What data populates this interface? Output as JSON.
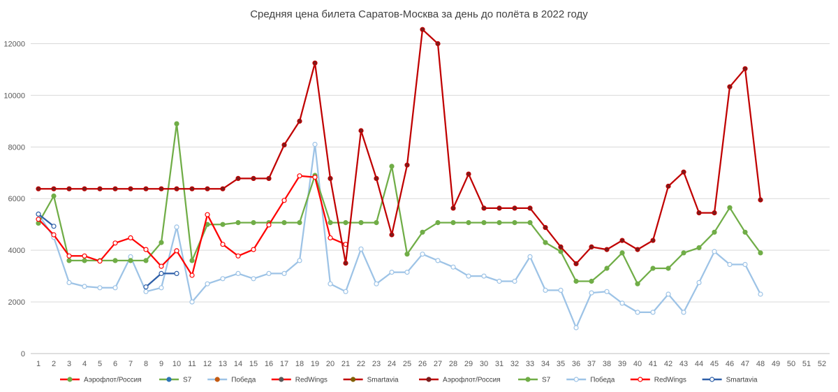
{
  "chart_data": {
    "type": "line",
    "title": "Средняя цена билета Саратов-Москва за день до полёта в 2022 году",
    "xlabel": "",
    "ylabel": "",
    "x": [
      1,
      2,
      3,
      4,
      5,
      6,
      7,
      8,
      9,
      10,
      11,
      12,
      13,
      14,
      15,
      16,
      17,
      18,
      19,
      20,
      21,
      22,
      23,
      24,
      25,
      26,
      27,
      28,
      29,
      30,
      31,
      32,
      33,
      34,
      35,
      36,
      37,
      38,
      39,
      40,
      41,
      42,
      43,
      44,
      45,
      46,
      47,
      48,
      49,
      50,
      51,
      52
    ],
    "x_tick_labels": [
      "1",
      "2",
      "3",
      "4",
      "5",
      "6",
      "7",
      "8",
      "9",
      "10",
      "11",
      "12",
      "13",
      "14",
      "15",
      "16",
      "17",
      "18",
      "19",
      "20",
      "21",
      "22",
      "23",
      "24",
      "25",
      "26",
      "27",
      "28",
      "29",
      "30",
      "31",
      "32",
      "33",
      "34",
      "35",
      "36",
      "37",
      "38",
      "39",
      "40",
      "41",
      "42",
      "43",
      "44",
      "45",
      "46",
      "47",
      "48",
      "49",
      "50",
      "51",
      "52"
    ],
    "ylim": [
      0,
      12500
    ],
    "y_ticks": [
      0,
      2000,
      4000,
      6000,
      8000,
      10000,
      12000
    ],
    "y_tick_labels": [
      "0",
      "2000",
      "4000",
      "6000",
      "8000",
      "10000",
      "12000"
    ],
    "grid": "horizontal",
    "legend_position": "bottom",
    "legend": [
      {
        "name": "Аэрофлот/Россия",
        "color": "#ff0000",
        "marker": "#70ad47"
      },
      {
        "name": "S7",
        "color": "#70ad47",
        "marker": "#2e75b6"
      },
      {
        "name": "Победа",
        "color": "#9dc3e6",
        "marker": "#c55a11"
      },
      {
        "name": "RedWings",
        "color": "#ff0000",
        "marker": "#595959"
      },
      {
        "name": "Smartavia",
        "color": "#c00000",
        "marker": "#806000"
      },
      {
        "name": "Аэрофлот/Россия",
        "color": "#c00000",
        "marker": "#7b1c1c"
      },
      {
        "name": "S7",
        "color": "#70ad47",
        "marker": "#70ad47"
      },
      {
        "name": "Победа",
        "color": "#9dc3e6",
        "marker": "#ffffff",
        "marker_stroke": "#9dc3e6"
      },
      {
        "name": "RedWings",
        "color": "#ff0000",
        "marker": "#ffffff",
        "marker_stroke": "#ff0000"
      },
      {
        "name": "Smartavia",
        "color": "#2e5fa8",
        "marker": "#ffffff",
        "marker_stroke": "#2e5fa8"
      }
    ],
    "series": [
      {
        "name": "Победа",
        "color": "#9dc3e6",
        "marker_fill": "#ffffff",
        "marker_stroke": "#9dc3e6",
        "values": [
          5400,
          4500,
          2750,
          2600,
          2550,
          2550,
          3750,
          2400,
          2550,
          4900,
          2000,
          2700,
          2900,
          3100,
          2900,
          3100,
          3100,
          3600,
          8100,
          2700,
          2400,
          4050,
          2700,
          3150,
          3150,
          3850,
          3600,
          3350,
          3000,
          3000,
          2800,
          2800,
          3750,
          2450,
          2450,
          1000,
          2350,
          2400,
          1950,
          1600,
          1600,
          2300,
          1600,
          2750,
          3950,
          3450,
          3450,
          2300,
          null,
          null,
          null,
          null
        ]
      },
      {
        "name": "S7",
        "color": "#70ad47",
        "marker_fill": "#70ad47",
        "marker_stroke": "#70ad47",
        "values": [
          5050,
          6100,
          3600,
          3600,
          3600,
          3600,
          3600,
          3600,
          4300,
          8900,
          3600,
          5000,
          5000,
          5070,
          5070,
          5070,
          5070,
          5070,
          6900,
          5070,
          5070,
          5070,
          5070,
          7250,
          3850,
          4700,
          5070,
          5070,
          5070,
          5070,
          5070,
          5070,
          5070,
          4300,
          3950,
          2800,
          2800,
          3300,
          3900,
          2700,
          3300,
          3300,
          3900,
          4100,
          4700,
          5650,
          4700,
          3900,
          null,
          null,
          null,
          null
        ]
      },
      {
        "name": "RedWings",
        "color": "#ff0000",
        "marker_fill": "#ffffff",
        "marker_stroke": "#ff0000",
        "values": [
          5200,
          4600,
          3780,
          3780,
          3580,
          4280,
          4480,
          4030,
          3380,
          3980,
          3030,
          5380,
          4230,
          3780,
          4030,
          4980,
          5930,
          6880,
          6830,
          4480,
          4230,
          null,
          null,
          null,
          null,
          null,
          null,
          null,
          null,
          null,
          null,
          null,
          null,
          null,
          null,
          null,
          null,
          null,
          null,
          null,
          null,
          null,
          null,
          null,
          null,
          null,
          null,
          null,
          null,
          null,
          null,
          null
        ]
      },
      {
        "name": "Аэрофлот/Россия",
        "color": "#c00000",
        "marker_fill": "#7b1c1c",
        "marker_stroke": "#c00000",
        "values": [
          6380,
          6380,
          6380,
          6380,
          6380,
          6380,
          6380,
          6380,
          6380,
          6380,
          6380,
          6380,
          6380,
          6780,
          6780,
          6780,
          8080,
          9000,
          11250,
          6780,
          3500,
          8630,
          6780,
          4600,
          7300,
          12550,
          12000,
          5630,
          6950,
          5630,
          5630,
          5630,
          5630,
          4880,
          4130,
          3480,
          4130,
          4030,
          4380,
          4030,
          4380,
          6480,
          7030,
          5450,
          5450,
          10330,
          11030,
          5950,
          null,
          null,
          null,
          null
        ]
      },
      {
        "name": "Smartavia",
        "color": "#2e5fa8",
        "marker_fill": "#ffffff",
        "marker_stroke": "#2e5fa8",
        "values": [
          5400,
          4930,
          null,
          null,
          null,
          null,
          null,
          2580,
          3100,
          3100,
          null,
          null,
          null,
          null,
          null,
          null,
          null,
          null,
          null,
          null,
          null,
          null,
          null,
          null,
          null,
          null,
          null,
          null,
          null,
          null,
          null,
          null,
          null,
          null,
          null,
          null,
          null,
          null,
          null,
          null,
          null,
          null,
          null,
          null,
          null,
          null,
          null,
          null,
          null,
          null,
          null,
          null
        ]
      }
    ]
  }
}
